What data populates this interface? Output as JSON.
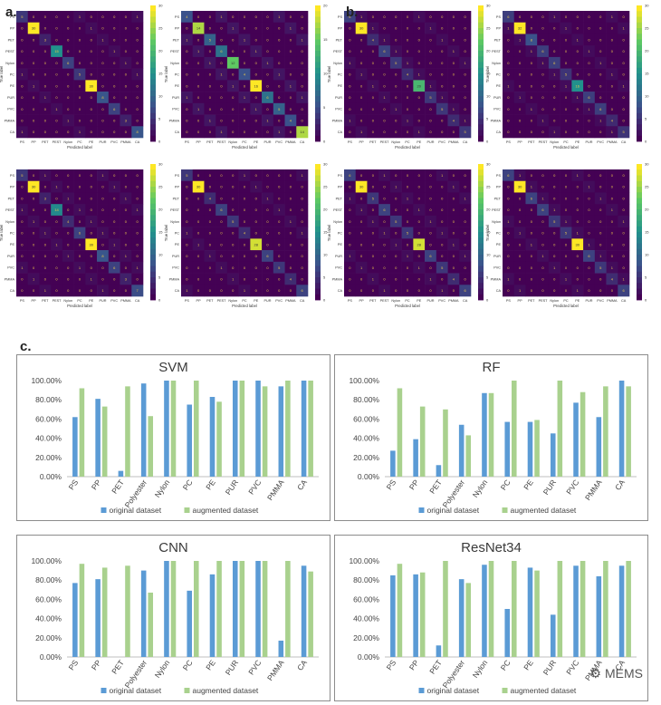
{
  "labels": {
    "a": "a.",
    "b": "b.",
    "c": "c."
  },
  "confusion_matrices": {
    "classes": [
      "PS",
      "PP",
      "PET",
      "PEST",
      "Nylon",
      "PC",
      "PE",
      "PUR",
      "PVC",
      "PMMA",
      "CA"
    ],
    "xlabel": "Predicted label",
    "ylabel": "True label",
    "colormap": [
      "#440154",
      "#3b528b",
      "#21918c",
      "#5ec962",
      "#fde725"
    ],
    "panels": [
      {
        "group": "a",
        "diag": [
          5,
          30,
          3,
          15,
          6,
          5,
          30,
          8,
          6,
          3,
          8
        ],
        "cbar_ticks": [
          "30",
          "25",
          "20",
          "15",
          "10",
          "5",
          "0"
        ]
      },
      {
        "group": "a",
        "diag": [
          4,
          14,
          5,
          6,
          12,
          4,
          16,
          6,
          5,
          4,
          14
        ],
        "cbar_ticks": [
          "20",
          "15",
          "10",
          "5",
          "0"
        ]
      },
      {
        "group": "b",
        "diag": [
          6,
          30,
          4,
          6,
          5,
          4,
          20,
          5,
          5,
          4,
          5
        ],
        "cbar_ticks": [
          "30",
          "25",
          "20",
          "15",
          "10",
          "5",
          "0"
        ]
      },
      {
        "group": "b",
        "diag": [
          6,
          32,
          8,
          6,
          6,
          5,
          16,
          6,
          6,
          4,
          5
        ],
        "cbar_ticks": [
          "30",
          "25",
          "20",
          "15",
          "10",
          "5",
          "0"
        ]
      },
      {
        "group": "a",
        "diag": [
          5,
          30,
          3,
          14,
          4,
          6,
          30,
          8,
          6,
          3,
          7
        ],
        "cbar_ticks": [
          "30",
          "25",
          "20",
          "15",
          "10",
          "5",
          "0"
        ]
      },
      {
        "group": "a",
        "diag": [
          5,
          30,
          4,
          6,
          5,
          4,
          28,
          6,
          5,
          4,
          6
        ],
        "cbar_ticks": [
          "30",
          "25",
          "20",
          "15",
          "10",
          "5",
          "0"
        ]
      },
      {
        "group": "b",
        "diag": [
          6,
          30,
          5,
          6,
          5,
          5,
          28,
          6,
          5,
          4,
          6
        ],
        "cbar_ticks": [
          "30",
          "25",
          "20",
          "15",
          "10",
          "5",
          "0"
        ]
      },
      {
        "group": "b",
        "diag": [
          6,
          30,
          6,
          6,
          5,
          5,
          30,
          6,
          5,
          4,
          6
        ],
        "cbar_ticks": [
          "30",
          "25",
          "20",
          "15",
          "10",
          "5",
          "0"
        ]
      }
    ]
  },
  "bar_colors": {
    "original": "#5b9bd5",
    "augmented": "#a9d18e"
  },
  "watermark": "MEMS",
  "chart_data": [
    {
      "type": "bar",
      "title": "SVM",
      "ylim": [
        0,
        100
      ],
      "yticks": [
        "0.00%",
        "20.00%",
        "40.00%",
        "60.00%",
        "80.00%",
        "100.00%"
      ],
      "categories": [
        "PS",
        "PP",
        "PET",
        "Polyester",
        "Nylon",
        "PC",
        "PE",
        "PUR",
        "PVC",
        "PMMA",
        "CA"
      ],
      "series": [
        {
          "name": "original dataset",
          "values": [
            62,
            81,
            6,
            97,
            100,
            75,
            83,
            100,
            100,
            94,
            100
          ]
        },
        {
          "name": "augmented dataset",
          "values": [
            92,
            73,
            94,
            63,
            100,
            100,
            78,
            100,
            94,
            100,
            100
          ]
        }
      ],
      "legend": "bottom"
    },
    {
      "type": "bar",
      "title": "RF",
      "ylim": [
        0,
        100
      ],
      "yticks": [
        "0.00%",
        "20.00%",
        "40.00%",
        "60.00%",
        "80.00%",
        "100.00%"
      ],
      "categories": [
        "PS",
        "PP",
        "PET",
        "Polyester",
        "Nylon",
        "PC",
        "PE",
        "PUR",
        "PVC",
        "PMMA",
        "CA"
      ],
      "series": [
        {
          "name": "original dataset",
          "values": [
            27,
            39,
            12,
            54,
            87,
            57,
            57,
            45,
            77,
            62,
            100
          ]
        },
        {
          "name": "augmented dataset",
          "values": [
            92,
            73,
            70,
            43,
            87,
            100,
            59,
            100,
            88,
            94,
            94
          ]
        }
      ],
      "legend": "bottom"
    },
    {
      "type": "bar",
      "title": "CNN",
      "ylim": [
        0,
        100
      ],
      "yticks": [
        "0.00%",
        "20.00%",
        "40.00%",
        "60.00%",
        "80.00%",
        "100.00%"
      ],
      "categories": [
        "PS",
        "PP",
        "PET",
        "Polyester",
        "Nylon",
        "PC",
        "PE",
        "PUR",
        "PVC",
        "PMMA",
        "CA"
      ],
      "series": [
        {
          "name": "original dataset",
          "values": [
            77,
            81,
            0,
            90,
            100,
            69,
            86,
            100,
            100,
            17,
            95
          ]
        },
        {
          "name": "augmented dataset",
          "values": [
            97,
            93,
            95,
            67,
            100,
            100,
            100,
            100,
            100,
            100,
            89
          ]
        }
      ],
      "legend": "bottom"
    },
    {
      "type": "bar",
      "title": "ResNet34",
      "ylim": [
        0,
        100
      ],
      "yticks": [
        "0.00%",
        "20.00%",
        "40.00%",
        "60.00%",
        "80.00%",
        "100.00%"
      ],
      "categories": [
        "PS",
        "PP",
        "PET",
        "Polyester",
        "Nylon",
        "PC",
        "PE",
        "PUR",
        "PVC",
        "PMMA",
        "CA"
      ],
      "series": [
        {
          "name": "original dataset",
          "values": [
            85,
            86,
            12,
            81,
            96,
            50,
            93,
            44,
            95,
            84,
            95
          ]
        },
        {
          "name": "augmented dataset",
          "values": [
            97,
            88,
            100,
            77,
            100,
            100,
            90,
            100,
            100,
            100,
            100
          ]
        }
      ],
      "legend": "bottom"
    }
  ]
}
